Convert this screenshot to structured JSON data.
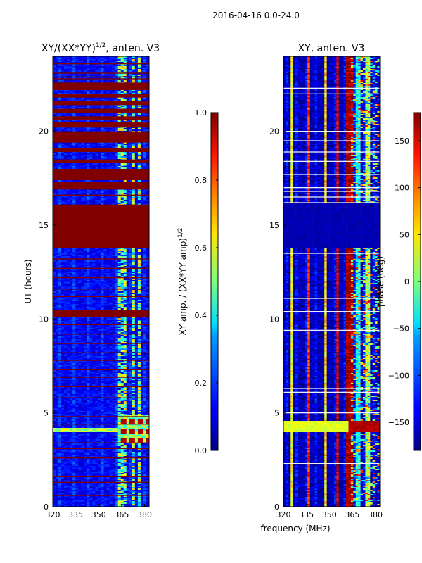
{
  "figure": {
    "suptitle": "2016-04-16 0.0-24.0",
    "shared_xlabel": "frequency (MHz)"
  },
  "chart_data": [
    {
      "type": "heatmap",
      "title_main": "XY/(XX*YY)",
      "title_sup": "1/2",
      "title_rest": ", anten. V3",
      "xlabel": "",
      "ylabel": "UT (hours)",
      "xlim": [
        320,
        383
      ],
      "ylim": [
        0,
        24
      ],
      "xticks": [
        320,
        335,
        350,
        365,
        380
      ],
      "xtick_labels": [
        "320",
        "335",
        "350",
        "365",
        "380"
      ],
      "yticks": [
        0,
        5,
        10,
        15,
        20
      ],
      "ytick_labels": [
        "0",
        "5",
        "10",
        "15",
        "20"
      ],
      "background_value": 0.12,
      "colormap": "jet",
      "saturated_bands_hours": [
        [
          13.8,
          16.1
        ],
        [
          16.9,
          17.3
        ],
        [
          17.4,
          18.0
        ],
        [
          18.3,
          18.5
        ],
        [
          18.9,
          19.1
        ],
        [
          19.4,
          20.0
        ],
        [
          20.2,
          20.5
        ],
        [
          20.6,
          20.8
        ],
        [
          21.0,
          21.2
        ],
        [
          21.4,
          21.6
        ],
        [
          21.8,
          22.0
        ],
        [
          22.2,
          22.6
        ],
        [
          10.1,
          10.5
        ]
      ],
      "thin_saturated_lines_hours": [
        23.6,
        23.1,
        22.9,
        22.8,
        16.6,
        13.2,
        12.7,
        12.2,
        11.6,
        11.2,
        9.7,
        9.2,
        8.7,
        8.2,
        7.8,
        7.3,
        6.9,
        6.4,
        5.8,
        4.8,
        4.4,
        3.4,
        3.1,
        2.6,
        1.6,
        1.3,
        0.6
      ],
      "hot_block": {
        "freq": [
          363,
          383
        ],
        "hours": [
          2.9,
          5.6
        ],
        "value": 0.95
      },
      "horizontal_feature_hour": 4.1,
      "bright_freq_bands_MHz": [
        [
          362,
          366
        ],
        [
          366,
          369
        ],
        [
          372,
          374
        ],
        [
          376,
          378
        ]
      ]
    },
    {
      "type": "colorbar",
      "label_main": "XY amp. / (XX*YY amp)",
      "label_sup": "1/2",
      "range": [
        0.0,
        1.0
      ],
      "ticks": [
        0.0,
        0.2,
        0.4,
        0.6,
        0.8,
        1.0
      ],
      "tick_labels": [
        "0.0",
        "0.2",
        "0.4",
        "0.6",
        "0.8",
        "1.0"
      ]
    },
    {
      "type": "heatmap",
      "title": "XY, anten. V3",
      "xlabel": "frequency (MHz)",
      "ylabel": "",
      "xlim": [
        320,
        383
      ],
      "ylim": [
        0,
        24
      ],
      "xticks": [
        320,
        335,
        350,
        365,
        380
      ],
      "xtick_labels": [
        "320",
        "335",
        "350",
        "365",
        "380"
      ],
      "yticks": [
        0,
        5,
        10,
        15,
        20
      ],
      "ytick_labels": [
        "0",
        "5",
        "10",
        "15",
        "20"
      ],
      "units": "phase (deg)",
      "background_value": -160,
      "colormap": "jet",
      "vertical_bands_MHz": [
        {
          "freq": [
            324,
            326
          ],
          "value": 40
        },
        {
          "freq": [
            336,
            337.5
          ],
          "value": 120
        },
        {
          "freq": [
            346,
            348
          ],
          "value": 60
        },
        {
          "freq": [
            355,
            357
          ],
          "value": 150
        },
        {
          "freq": [
            361,
            365
          ],
          "value": 170
        },
        {
          "freq": [
            368,
            371
          ],
          "value": -40
        },
        {
          "freq": [
            374,
            376
          ],
          "value": 20
        }
      ],
      "low_phase_block_hours": [
        13.8,
        16.2
      ],
      "white_lines_hours": [
        22.3,
        22.0,
        20.0,
        19.5,
        18.9,
        18.4,
        17.7,
        17.0,
        16.8,
        16.5,
        16.2,
        13.5,
        11.1,
        10.4,
        9.4,
        6.3,
        6.1,
        5.0,
        2.3
      ],
      "red_horizontal_band_hours": [
        4.0,
        4.6
      ]
    },
    {
      "type": "colorbar",
      "label": "phase (deg)",
      "range": [
        -180,
        180
      ],
      "ticks": [
        -150,
        -100,
        -50,
        0,
        50,
        100,
        150
      ],
      "tick_labels": [
        "−150",
        "−100",
        "−50",
        "0",
        "50",
        "100",
        "150"
      ]
    }
  ]
}
